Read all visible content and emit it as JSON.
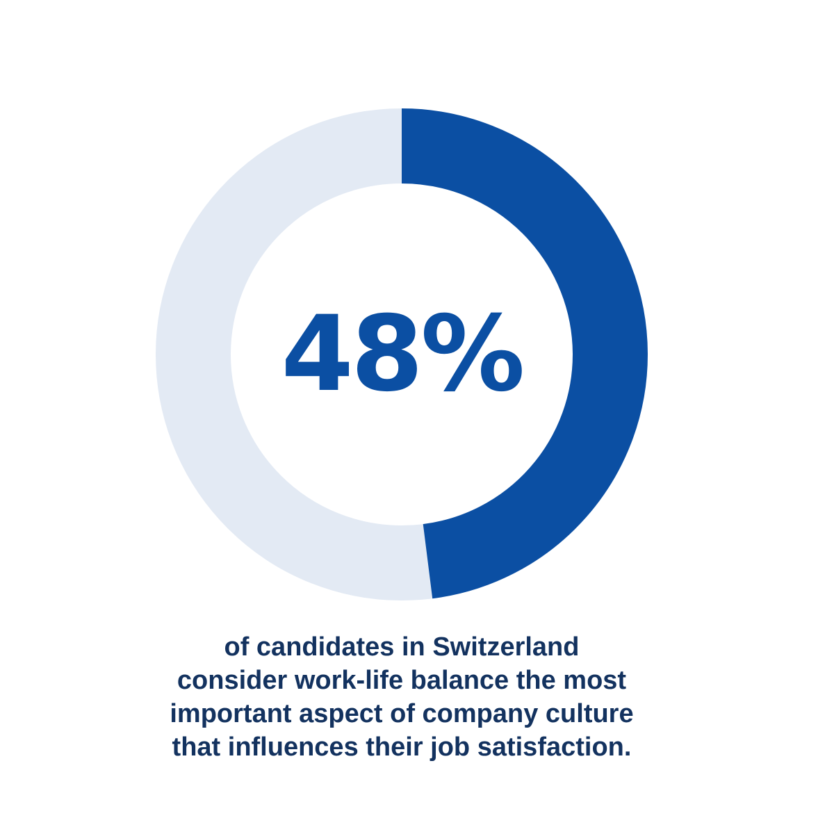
{
  "chart_data": {
    "type": "pie",
    "variant": "donut",
    "value_percent": 48,
    "remainder_percent": 52,
    "display_value": "48%",
    "caption_lines": [
      "of candidates in Switzerland",
      "consider work-life balance the most",
      "important aspect of company culture",
      "that influences their job satisfaction."
    ],
    "legend": "none"
  },
  "colors": {
    "value_arc": "#0b4fa3",
    "track": "#e3eaf4",
    "value_text": "#0b4fa3",
    "caption_text": "#13325f"
  }
}
